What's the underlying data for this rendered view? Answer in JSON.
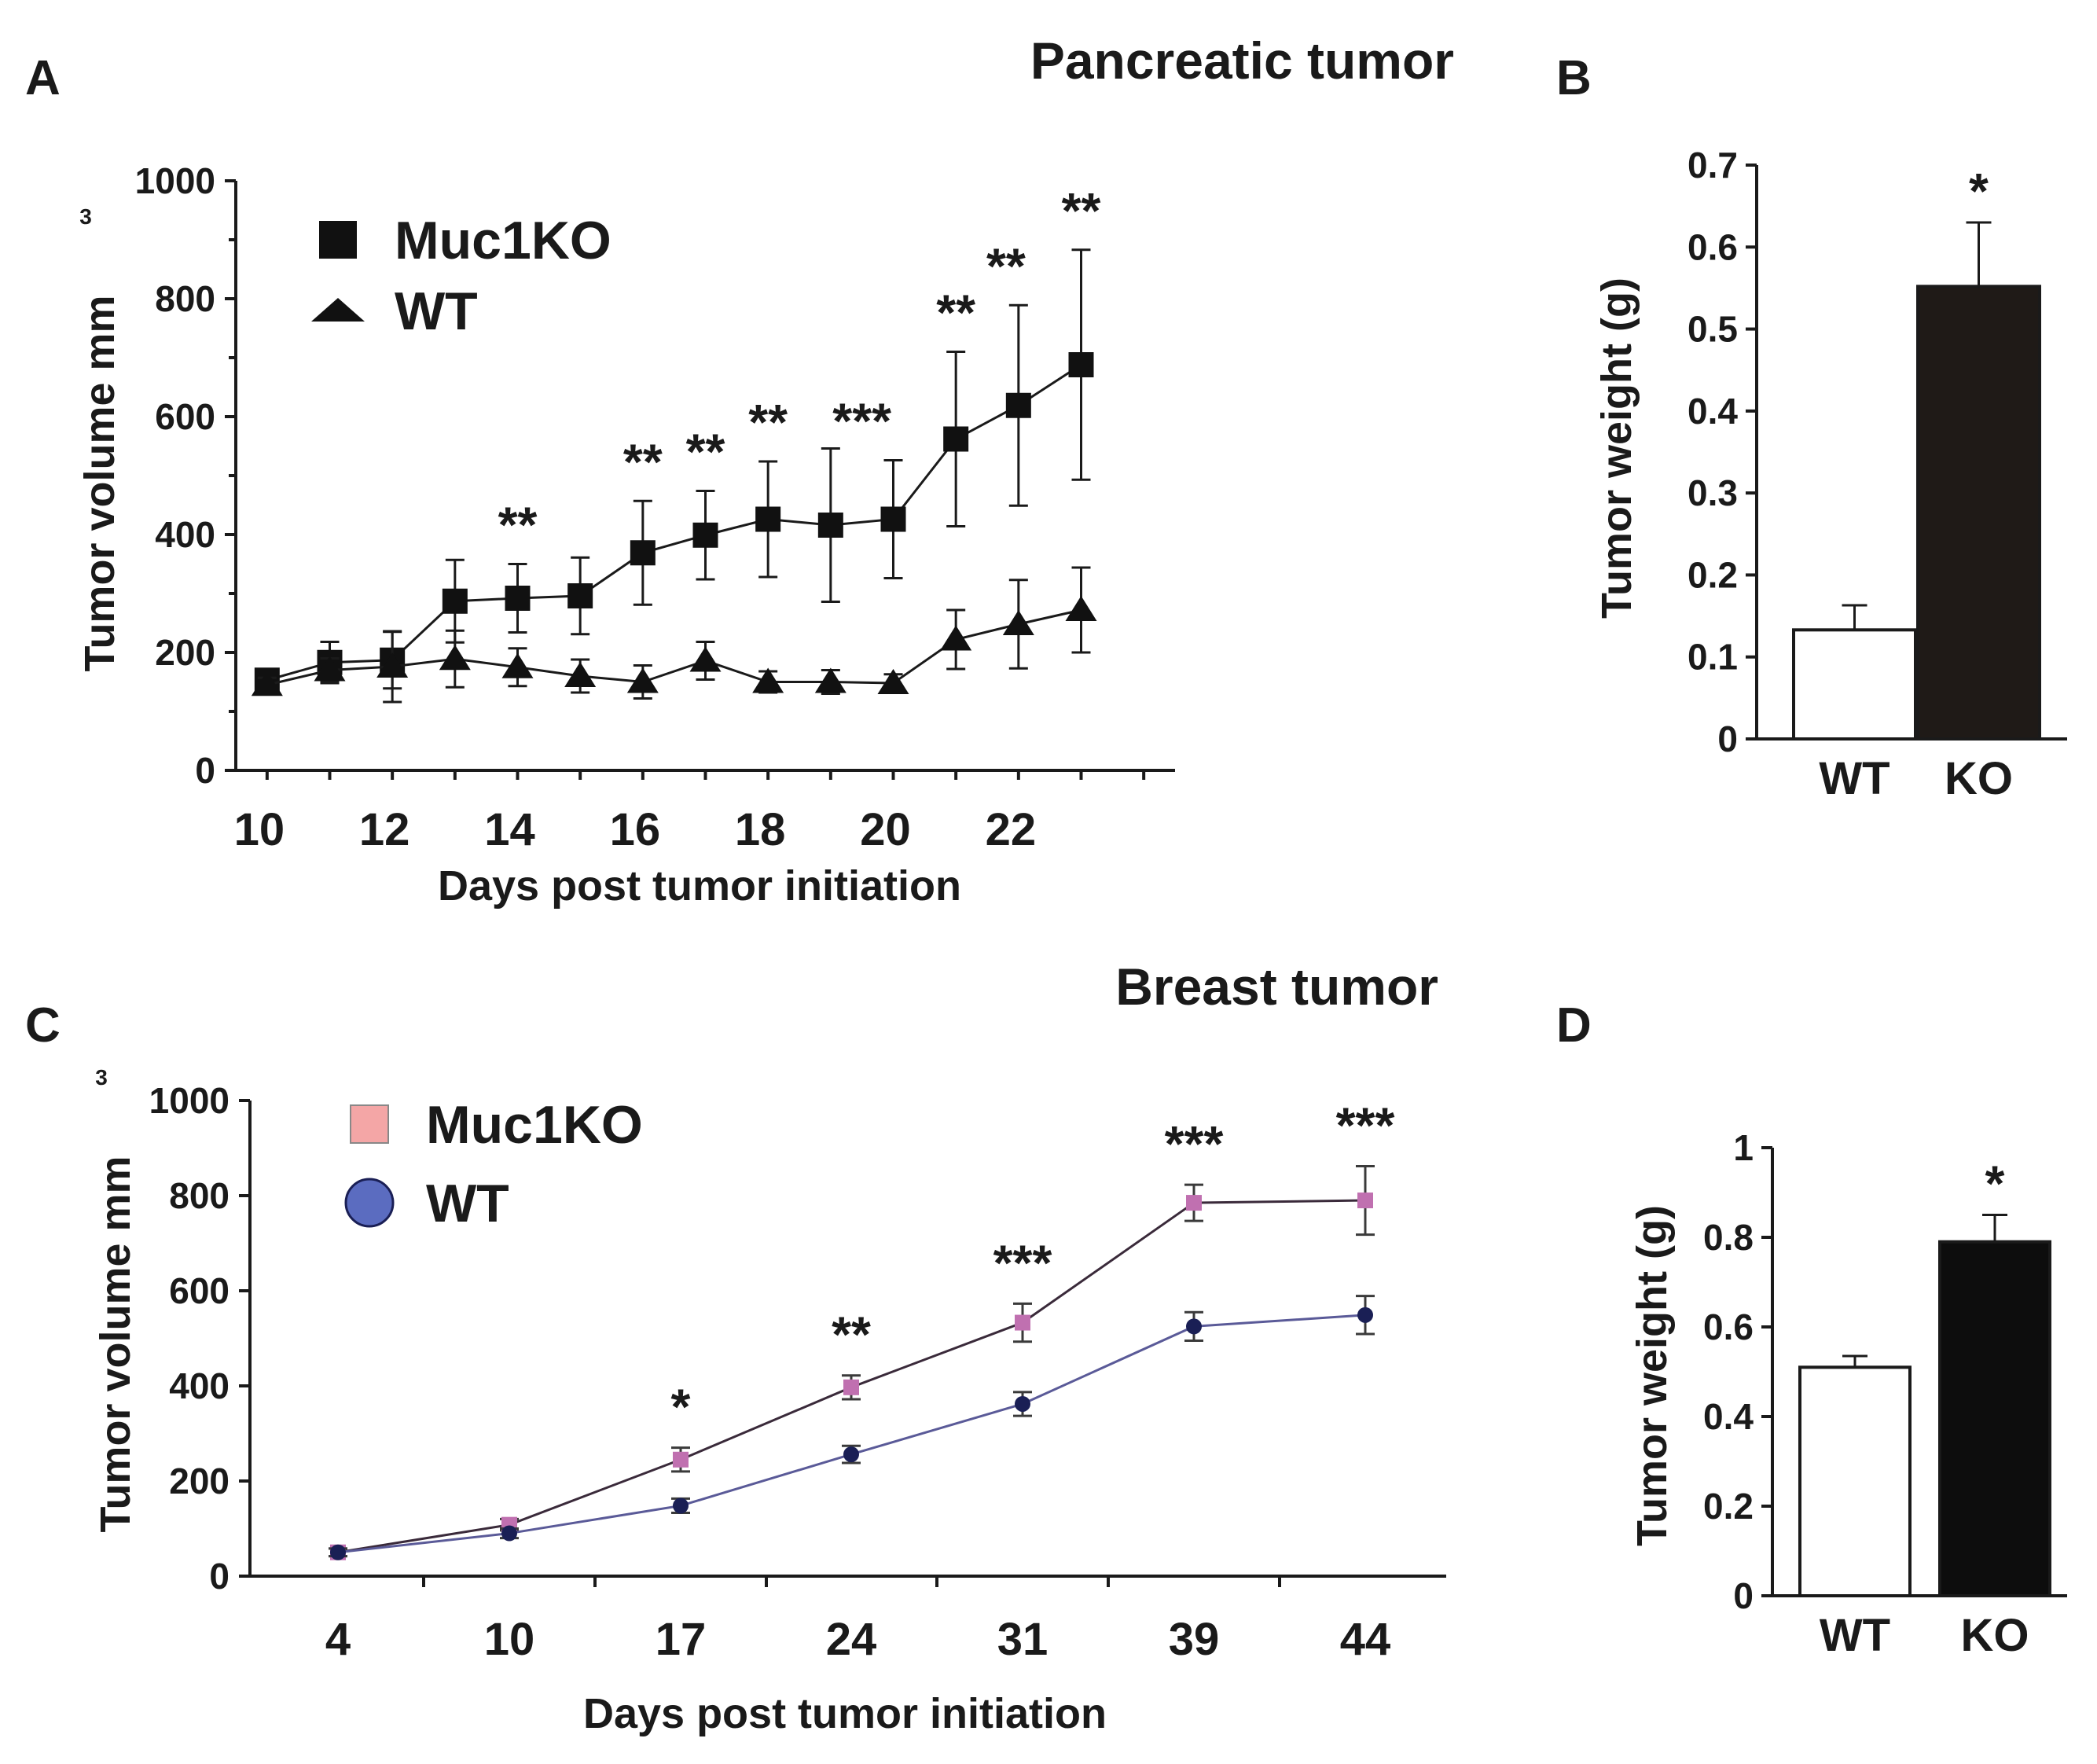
{
  "panels": {
    "A": {
      "letter": "A",
      "title": "Pancreatic tumor"
    },
    "B": {
      "letter": "B"
    },
    "C": {
      "letter": "C",
      "title": "Breast tumor"
    },
    "D": {
      "letter": "D"
    }
  },
  "chart_data": [
    {
      "id": "A",
      "type": "line",
      "title": "Pancreatic tumor",
      "xlabel": "Days post tumor initiation",
      "ylabel": "Tumor volume mm",
      "ylabel_superscript": "3",
      "xlim": [
        9.5,
        24.5
      ],
      "ylim": [
        0,
        1000
      ],
      "xticks": [
        10,
        12,
        14,
        16,
        18,
        20,
        22
      ],
      "yticks": [
        0,
        200,
        400,
        600,
        800,
        1000
      ],
      "legend_position": "top-left",
      "colors": {
        "line": "#1a1a1a",
        "marker": "#111111"
      },
      "series": [
        {
          "name": "Muc1KO",
          "marker": "square",
          "x": [
            10,
            11,
            12,
            13,
            14,
            15,
            16,
            17,
            18,
            19,
            20,
            21,
            22,
            23
          ],
          "y": [
            153,
            183,
            187,
            287,
            292,
            296,
            369,
            399,
            426,
            416,
            426,
            562,
            619,
            688
          ],
          "err": [
            15,
            35,
            48,
            70,
            58,
            65,
            88,
            75,
            98,
            130,
            100,
            148,
            170,
            195
          ]
        },
        {
          "name": "WT",
          "marker": "triangle",
          "x": [
            10,
            11,
            12,
            13,
            14,
            15,
            16,
            17,
            18,
            19,
            20,
            21,
            22,
            23
          ],
          "y": [
            145,
            170,
            176,
            189,
            175,
            160,
            150,
            186,
            150,
            150,
            148,
            222,
            248,
            272
          ],
          "err": [
            12,
            20,
            60,
            48,
            32,
            28,
            28,
            32,
            18,
            20,
            15,
            50,
            75,
            72
          ]
        }
      ],
      "annotations": [
        {
          "x": 14,
          "text": "**"
        },
        {
          "x": 16,
          "text": "**"
        },
        {
          "x": 17,
          "text": "**"
        },
        {
          "x": 18,
          "text": "**"
        },
        {
          "x": 19.5,
          "text": "***"
        },
        {
          "x": 21,
          "text": "**"
        },
        {
          "x": 21.8,
          "text": "**"
        },
        {
          "x": 23,
          "text": "**"
        }
      ]
    },
    {
      "id": "B",
      "type": "bar",
      "categories": [
        "WT",
        "KO"
      ],
      "values": [
        0.133,
        0.552
      ],
      "err": [
        0.03,
        0.078
      ],
      "ylabel": "Tumor weight (g)",
      "ylim": [
        0,
        0.7
      ],
      "yticks": [
        0,
        0.1,
        0.2,
        0.3,
        0.4,
        0.5,
        0.6,
        0.7
      ],
      "colors": [
        "#ffffff",
        "#1f1a17"
      ],
      "annotations": [
        {
          "category": "KO",
          "text": "*"
        }
      ]
    },
    {
      "id": "C",
      "type": "line",
      "title": "Breast tumor",
      "xlabel": "Days post tumor initiation",
      "ylabel": "Tumor volume mm",
      "ylabel_superscript": "3",
      "categories": [
        "4",
        "10",
        "17",
        "24",
        "31",
        "39",
        "44"
      ],
      "ylim": [
        0,
        1000
      ],
      "yticks": [
        0,
        200,
        400,
        600,
        800,
        1000
      ],
      "legend_position": "top-left",
      "series": [
        {
          "name": "Muc1KO",
          "marker": "square",
          "color": "#c070b0",
          "legend_color": "#f4a6a6",
          "values": [
            50,
            108,
            245,
            397,
            533,
            785,
            790
          ],
          "err": [
            8,
            12,
            25,
            25,
            40,
            38,
            72
          ]
        },
        {
          "name": "WT",
          "marker": "circle",
          "color": "#1a1f55",
          "legend_color": "#5b6cc0",
          "values": [
            50,
            90,
            148,
            256,
            362,
            525,
            549
          ],
          "err": [
            8,
            10,
            15,
            18,
            25,
            30,
            40
          ]
        }
      ],
      "annotations": [
        {
          "category": "17",
          "text": "*"
        },
        {
          "category": "24",
          "text": "**"
        },
        {
          "category": "31",
          "text": "***"
        },
        {
          "category": "39",
          "text": "***"
        },
        {
          "category": "44",
          "text": "***"
        }
      ]
    },
    {
      "id": "D",
      "type": "bar",
      "categories": [
        "WT",
        "KO"
      ],
      "values": [
        0.51,
        0.79
      ],
      "err": [
        0.025,
        0.06
      ],
      "ylabel": "Tumor weight (g)",
      "ylim": [
        0,
        1
      ],
      "yticks": [
        "0",
        "0.2",
        "0.4",
        "0.6",
        "0.8",
        "1"
      ],
      "colors": [
        "#ffffff",
        "#0d0d0d"
      ],
      "annotations": [
        {
          "category": "KO",
          "text": "*"
        }
      ]
    }
  ]
}
